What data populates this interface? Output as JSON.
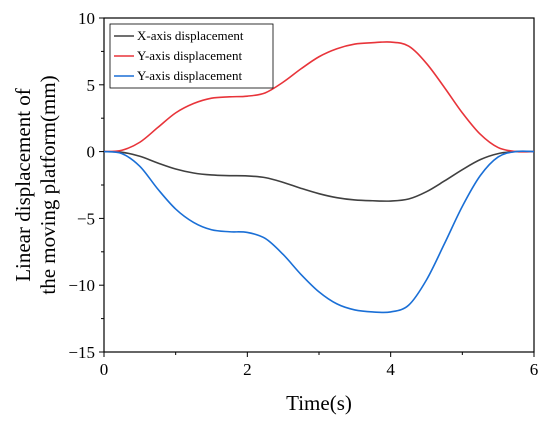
{
  "chart_data": {
    "type": "line",
    "title": "",
    "xlabel": "Time(s)",
    "ylabel_lines": [
      "Linear displacement of",
      "the moving platform(mm)"
    ],
    "xlim": [
      0,
      6
    ],
    "ylim": [
      -15,
      10
    ],
    "xticks": [
      0,
      2,
      4,
      6
    ],
    "yticks": [
      10,
      5,
      0,
      -5,
      -10,
      -15
    ],
    "xtick_labels": [
      "0",
      "2",
      "4",
      "6"
    ],
    "ytick_labels": [
      "10",
      "5",
      "0",
      "−5",
      "−10",
      "−15"
    ],
    "grid": false,
    "legend": "top-left",
    "series": [
      {
        "name": "X-axis displacement",
        "color": "#404040",
        "x": [
          0,
          0.25,
          0.5,
          0.75,
          1.0,
          1.25,
          1.5,
          1.75,
          2.0,
          2.25,
          2.5,
          2.75,
          3.0,
          3.25,
          3.5,
          3.75,
          4.0,
          4.25,
          4.5,
          4.75,
          5.0,
          5.25,
          5.5,
          5.75,
          6.0
        ],
        "values": [
          0,
          -0.05,
          -0.35,
          -0.85,
          -1.3,
          -1.6,
          -1.75,
          -1.8,
          -1.82,
          -1.95,
          -2.3,
          -2.75,
          -3.15,
          -3.45,
          -3.62,
          -3.68,
          -3.7,
          -3.55,
          -3.0,
          -2.2,
          -1.35,
          -0.6,
          -0.15,
          0,
          0
        ]
      },
      {
        "name": "Y-axis displacement",
        "color": "#e8343a",
        "x": [
          0,
          0.25,
          0.5,
          0.75,
          1.0,
          1.25,
          1.5,
          1.75,
          2.0,
          2.25,
          2.5,
          2.75,
          3.0,
          3.25,
          3.5,
          3.75,
          4.0,
          4.25,
          4.5,
          4.75,
          5.0,
          5.25,
          5.5,
          5.75,
          6.0
        ],
        "values": [
          0,
          0.1,
          0.7,
          1.8,
          2.9,
          3.6,
          4.0,
          4.1,
          4.15,
          4.4,
          5.2,
          6.2,
          7.1,
          7.7,
          8.05,
          8.15,
          8.2,
          7.9,
          6.6,
          4.8,
          2.9,
          1.3,
          0.3,
          0,
          0
        ]
      },
      {
        "name": "Y-axis displacement",
        "color": "#1a6fd6",
        "x": [
          0,
          0.25,
          0.5,
          0.75,
          1.0,
          1.25,
          1.5,
          1.75,
          2.0,
          2.25,
          2.5,
          2.75,
          3.0,
          3.25,
          3.5,
          3.75,
          4.0,
          4.25,
          4.5,
          4.75,
          5.0,
          5.25,
          5.5,
          5.75,
          6.0
        ],
        "values": [
          0,
          -0.15,
          -1.1,
          -2.8,
          -4.3,
          -5.3,
          -5.85,
          -6.0,
          -6.05,
          -6.5,
          -7.7,
          -9.2,
          -10.5,
          -11.4,
          -11.85,
          -12.0,
          -12.0,
          -11.5,
          -9.6,
          -6.9,
          -4.1,
          -1.8,
          -0.4,
          0,
          0
        ]
      }
    ]
  }
}
